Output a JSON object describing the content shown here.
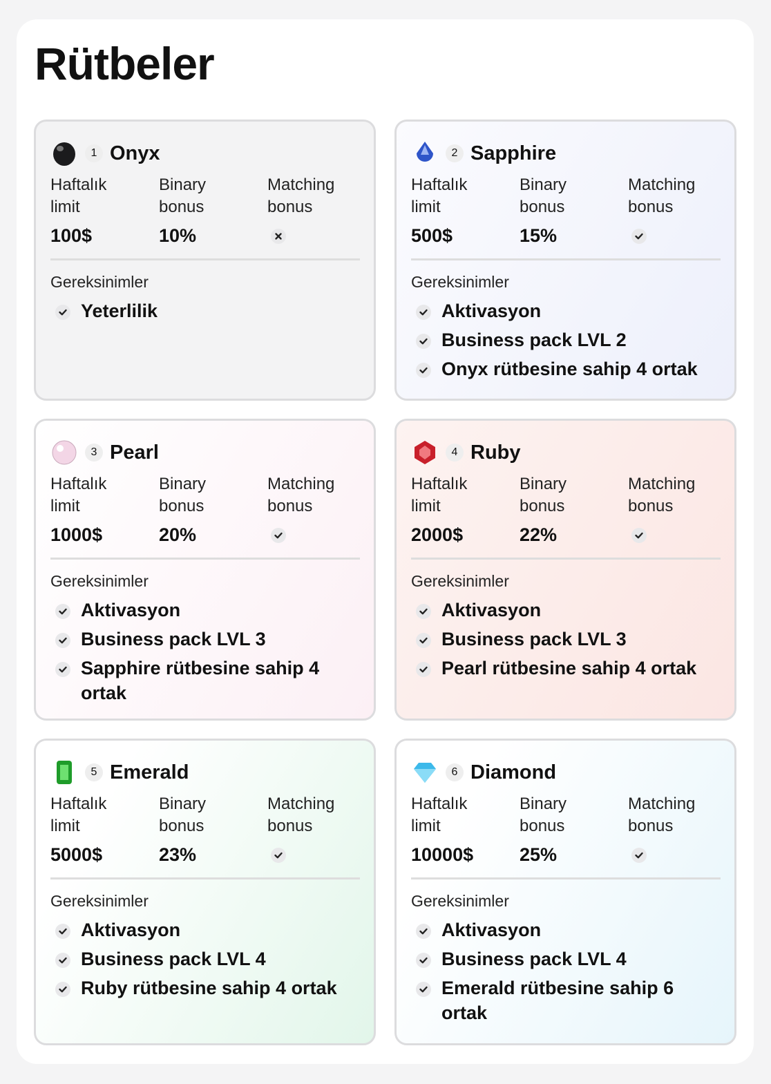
{
  "title": "Rütbeler",
  "ranks": [
    {
      "number": "1",
      "name": "Onyx",
      "limit_label": "Haftalık limit",
      "binary_label": "Binary bonus",
      "matching_label": "Matching bonus",
      "limit": "100$",
      "binary": "10%",
      "matching_bonus": false,
      "requirements_label": "Gereksinimler",
      "requirements": [
        "Yeterlilik"
      ]
    },
    {
      "number": "2",
      "name": "Sapphire",
      "limit_label": "Haftalık limit",
      "binary_label": "Binary bonus",
      "matching_label": "Matching bonus",
      "limit": "500$",
      "binary": "15%",
      "matching_bonus": true,
      "requirements_label": "Gereksinimler",
      "requirements": [
        "Aktivasyon",
        "Business pack LVL 2",
        "Onyx rütbesine sahip 4 ortak"
      ]
    },
    {
      "number": "3",
      "name": "Pearl",
      "limit_label": "Haftalık limit",
      "binary_label": "Binary bonus",
      "matching_label": "Matching bonus",
      "limit": "1000$",
      "binary": "20%",
      "matching_bonus": true,
      "requirements_label": "Gereksinimler",
      "requirements": [
        "Aktivasyon",
        "Business pack LVL 3",
        "Sapphire rütbesine sahip 4 ortak"
      ]
    },
    {
      "number": "4",
      "name": "Ruby",
      "limit_label": "Haftalık limit",
      "binary_label": "Binary bonus",
      "matching_label": "Matching bonus",
      "limit": "2000$",
      "binary": "22%",
      "matching_bonus": true,
      "requirements_label": "Gereksinimler",
      "requirements": [
        "Aktivasyon",
        "Business pack LVL 3",
        "Pearl rütbesine sahip 4 ortak"
      ]
    },
    {
      "number": "5",
      "name": "Emerald",
      "limit_label": "Haftalık limit",
      "binary_label": "Binary bonus",
      "matching_label": "Matching bonus",
      "limit": "5000$",
      "binary": "23%",
      "matching_bonus": true,
      "requirements_label": "Gereksinimler",
      "requirements": [
        "Aktivasyon",
        "Business pack LVL 4",
        "Ruby rütbesine sahip 4 ortak"
      ]
    },
    {
      "number": "6",
      "name": "Diamond",
      "limit_label": "Haftalık limit",
      "binary_label": "Binary bonus",
      "matching_label": "Matching bonus",
      "limit": "10000$",
      "binary": "25%",
      "matching_bonus": true,
      "requirements_label": "Gereksinimler",
      "requirements": [
        "Aktivasyon",
        "Business pack LVL 4",
        "Emerald rütbesine sahip 6 ortak"
      ]
    }
  ]
}
